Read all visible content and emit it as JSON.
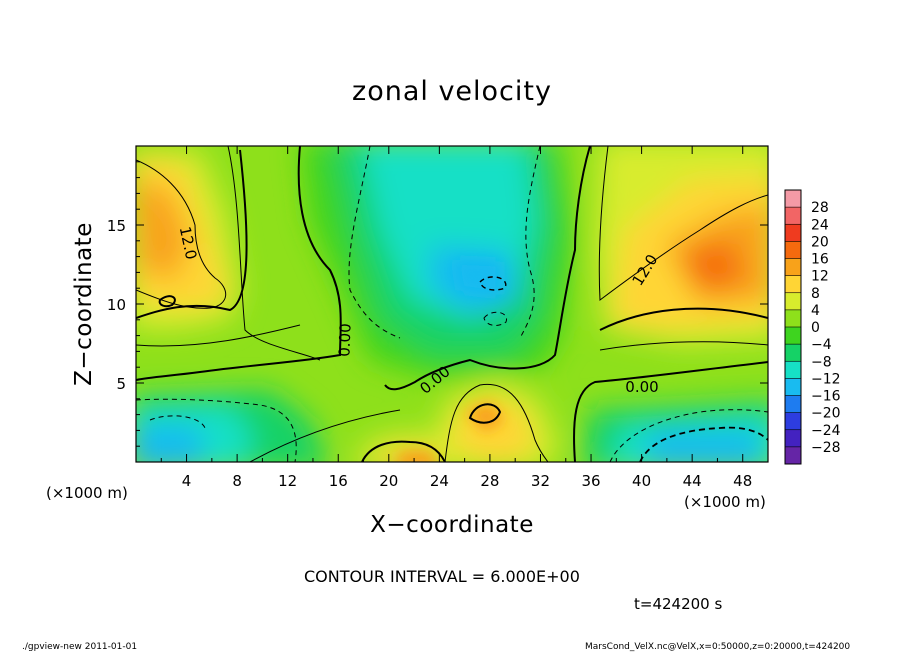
{
  "chart_data": {
    "type": "heatmap",
    "title": "zonal velocity",
    "xlabel": "X−coordinate",
    "ylabel": "Z−coordinate",
    "xunit": "(×1000 m)",
    "xlim": [
      0,
      50
    ],
    "ylim": [
      0,
      20
    ],
    "xticks": [
      "4",
      "8",
      "12",
      "16",
      "20",
      "24",
      "28",
      "32",
      "36",
      "40",
      "44",
      "48"
    ],
    "yticks": [
      "5",
      "10",
      "15"
    ],
    "colorbar": {
      "levels": [
        "28",
        "24",
        "20",
        "16",
        "12",
        "8",
        "4",
        "0",
        "−4",
        "−8",
        "−12",
        "−16",
        "−20",
        "−24",
        "−28"
      ],
      "colors": [
        "#f49aa6",
        "#f26565",
        "#ef3b1f",
        "#f56a0e",
        "#f8a21a",
        "#ffd535",
        "#d8ec2d",
        "#8ee01b",
        "#3ed41f",
        "#15d266",
        "#16e0c6",
        "#19bbf0",
        "#1e7cf0",
        "#2d3de0",
        "#4322c0",
        "#6525a6"
      ]
    },
    "contour_labels": [
      "12.0",
      "12.0",
      "0.00",
      "0.00",
      "0.00"
    ],
    "contour_interval": "CONTOUR INTERVAL = 6.000E+00",
    "time": "t=424200 s",
    "grid": false
  },
  "footer": {
    "left": "./gpview-new   2011-01-01",
    "right": "MarsCond_VelX.nc@VelX,x=0:50000,z=0:20000,t=424200"
  }
}
